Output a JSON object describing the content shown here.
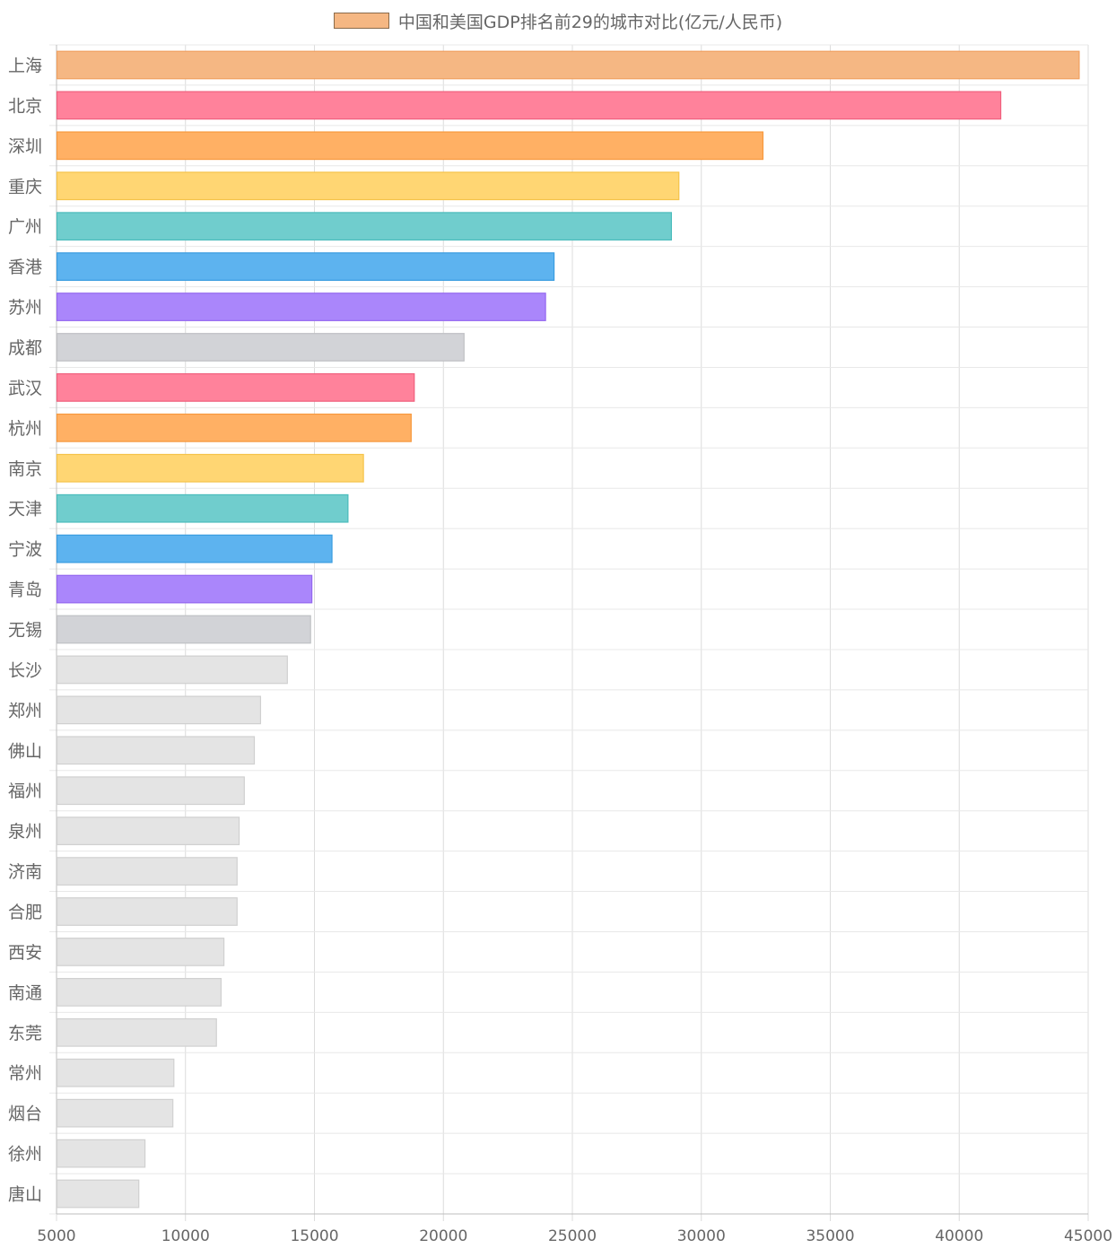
{
  "chart_data": {
    "type": "bar",
    "orientation": "horizontal",
    "legend": {
      "label": "中国和美国GDP排名前29的城市对比(亿元/人民币)",
      "position": "top",
      "swatch_color": "#F5B783"
    },
    "categories": [
      "上海",
      "北京",
      "深圳",
      "重庆",
      "广州",
      "香港",
      "苏州",
      "成都",
      "武汉",
      "杭州",
      "南京",
      "天津",
      "宁波",
      "青岛",
      "无锡",
      "长沙",
      "郑州",
      "佛山",
      "福州",
      "泉州",
      "济南",
      "合肥",
      "西安",
      "南通",
      "东莞",
      "常州",
      "烟台",
      "徐州",
      "唐山"
    ],
    "values": [
      44650,
      41610,
      32390,
      29130,
      28840,
      24290,
      23960,
      20800,
      18870,
      18750,
      16900,
      16300,
      15680,
      14900,
      14850,
      13950,
      12910,
      12670,
      12280,
      12080,
      12000,
      12000,
      11490,
      11380,
      11200,
      9550,
      9510,
      8430,
      8190
    ],
    "colors": [
      "#F5B783",
      "#FF829B",
      "#FFB064",
      "#FFD673",
      "#70CDCD",
      "#5DB3EF",
      "#AA86FB",
      "#D2D3D7",
      "#FF829B",
      "#FFB064",
      "#FFD673",
      "#70CDCD",
      "#5DB3EF",
      "#AA86FB",
      "#D2D3D7",
      "#E4E4E4",
      "#E4E4E4",
      "#E4E4E4",
      "#E4E4E4",
      "#E4E4E4",
      "#E4E4E4",
      "#E4E4E4",
      "#E4E4E4",
      "#E4E4E4",
      "#E4E4E4",
      "#E4E4E4",
      "#E4E4E4",
      "#E4E4E4",
      "#E4E4E4"
    ],
    "border_colors": [
      "#F0A060",
      "#F0607D",
      "#F7993E",
      "#F5C34A",
      "#4BBCBC",
      "#3A9DE0",
      "#9468F0",
      "#BFC0C4",
      "#F0607D",
      "#F7993E",
      "#F5C34A",
      "#4BBCBC",
      "#3A9DE0",
      "#9468F0",
      "#BFC0C4",
      "#D0D0D0",
      "#D0D0D0",
      "#D0D0D0",
      "#D0D0D0",
      "#D0D0D0",
      "#D0D0D0",
      "#D0D0D0",
      "#D0D0D0",
      "#D0D0D0",
      "#D0D0D0",
      "#D0D0D0",
      "#D0D0D0",
      "#D0D0D0",
      "#D0D0D0"
    ],
    "xlim": [
      5000,
      45000
    ],
    "x_ticks": [
      "5000",
      "10000",
      "15000",
      "20000",
      "25000",
      "30000",
      "35000",
      "40000",
      "45000"
    ],
    "grid": true,
    "xlabel": "",
    "ylabel": ""
  }
}
